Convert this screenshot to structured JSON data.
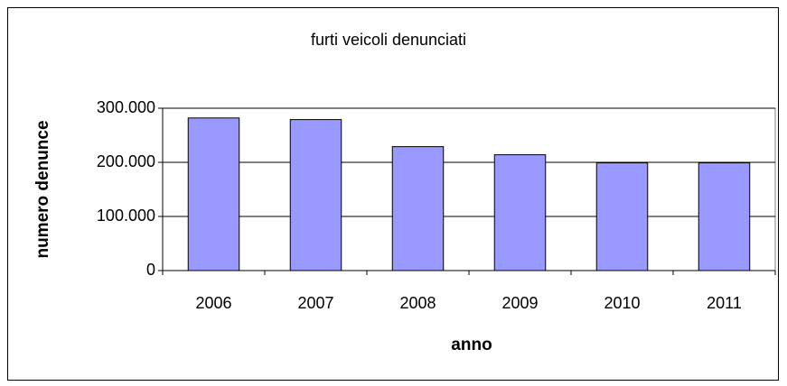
{
  "chart_data": {
    "type": "bar",
    "title": "furti veicoli denunciati",
    "x_label": "anno",
    "y_label": "numero denunce",
    "categories": [
      "2006",
      "2007",
      "2008",
      "2009",
      "2010",
      "2011"
    ],
    "values": [
      282000,
      279000,
      229000,
      214000,
      199000,
      199000
    ],
    "color": "#9999ff",
    "ylim": [
      0,
      300000
    ],
    "yticks": [
      0,
      {
        "value": 100000,
        "label": "100.000"
      },
      {
        "value": 200000,
        "label": "200.000"
      },
      {
        "value": 300000,
        "label": "300.000"
      }
    ],
    "grid": true
  }
}
